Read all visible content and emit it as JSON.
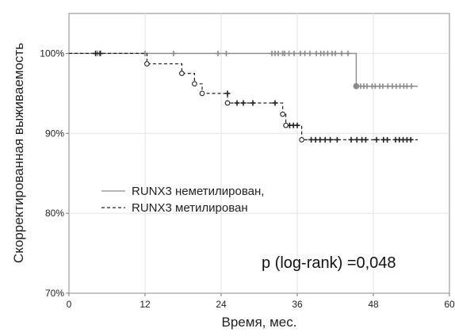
{
  "chart_data": {
    "type": "line",
    "subtype": "kaplan-meier",
    "xlabel": "Время, мес.",
    "ylabel": "Скорректированная выживаемость",
    "xlim": [
      0,
      60
    ],
    "ylim": [
      70,
      105
    ],
    "x_ticks": [
      0,
      12,
      24,
      36,
      48,
      60
    ],
    "x_tick_labels": [
      "0",
      "12",
      "24",
      "36",
      "48",
      "60"
    ],
    "y_ticks": [
      70,
      80,
      90,
      100
    ],
    "y_tick_labels": [
      "70%",
      "80%",
      "90%",
      "100%"
    ],
    "grid": true,
    "legend_position": "lower-left",
    "annotation": "p (log-rank) =0,048",
    "series": [
      {
        "name": "RUNX3 неметилирован,",
        "color": "#8a8a8a",
        "line_style": "solid",
        "steps": [
          [
            0,
            100
          ],
          [
            45.3,
            100
          ],
          [
            45.3,
            95.9
          ],
          [
            55,
            95.9
          ]
        ],
        "events": [
          [
            45.3,
            95.9
          ]
        ],
        "censored": [
          [
            4.5,
            100
          ],
          [
            5,
            100
          ],
          [
            12,
            100
          ],
          [
            16.5,
            100
          ],
          [
            23.5,
            100
          ],
          [
            24.8,
            100
          ],
          [
            32,
            100
          ],
          [
            32.5,
            100
          ],
          [
            33,
            100
          ],
          [
            33.7,
            100
          ],
          [
            34,
            100
          ],
          [
            34.7,
            100
          ],
          [
            35.5,
            100
          ],
          [
            36.5,
            100
          ],
          [
            37.2,
            100
          ],
          [
            38,
            100
          ],
          [
            39,
            100
          ],
          [
            39.7,
            100
          ],
          [
            40.2,
            100
          ],
          [
            40.8,
            100
          ],
          [
            41.5,
            100
          ],
          [
            42,
            100
          ],
          [
            43,
            100
          ],
          [
            44,
            100
          ],
          [
            46,
            95.9
          ],
          [
            46.5,
            95.9
          ],
          [
            47,
            95.9
          ],
          [
            47.8,
            95.9
          ],
          [
            48.3,
            95.9
          ],
          [
            49,
            95.9
          ],
          [
            49.5,
            95.9
          ],
          [
            50.3,
            95.9
          ],
          [
            51,
            95.9
          ],
          [
            51.6,
            95.9
          ],
          [
            52.2,
            95.9
          ],
          [
            52.8,
            95.9
          ],
          [
            53.3,
            95.9
          ],
          [
            54,
            95.9
          ]
        ]
      },
      {
        "name": "RUNX3 метилирован",
        "color": "#222222",
        "line_style": "dashed",
        "steps": [
          [
            0,
            100
          ],
          [
            12.3,
            100
          ],
          [
            12.3,
            98.7
          ],
          [
            17.8,
            98.7
          ],
          [
            17.8,
            97.5
          ],
          [
            19.8,
            97.5
          ],
          [
            19.8,
            96.2
          ],
          [
            21,
            96.2
          ],
          [
            21,
            95.0
          ],
          [
            25,
            95.0
          ],
          [
            25,
            93.8
          ],
          [
            33.7,
            93.8
          ],
          [
            33.7,
            92.4
          ],
          [
            34.2,
            92.4
          ],
          [
            34.2,
            91.0
          ],
          [
            36.7,
            91.0
          ],
          [
            36.7,
            89.2
          ],
          [
            55,
            89.2
          ]
        ],
        "events": [
          [
            12.3,
            98.7
          ],
          [
            17.8,
            97.5
          ],
          [
            19.8,
            96.2
          ],
          [
            21,
            95.0
          ],
          [
            25,
            93.8
          ],
          [
            33.7,
            92.4
          ],
          [
            34.2,
            91.0
          ],
          [
            36.7,
            89.2
          ]
        ],
        "censored": [
          [
            4.2,
            100
          ],
          [
            4.9,
            100
          ],
          [
            25,
            95.0
          ],
          [
            26.5,
            93.8
          ],
          [
            27.5,
            93.8
          ],
          [
            29,
            93.8
          ],
          [
            32.5,
            93.8
          ],
          [
            34.8,
            91.0
          ],
          [
            35.4,
            91.0
          ],
          [
            36,
            91.0
          ],
          [
            38.2,
            89.2
          ],
          [
            38.9,
            89.2
          ],
          [
            39.6,
            89.2
          ],
          [
            40.4,
            89.2
          ],
          [
            41.2,
            89.2
          ],
          [
            42.3,
            89.2
          ],
          [
            44.5,
            89.2
          ],
          [
            45.4,
            89.2
          ],
          [
            46.2,
            89.2
          ],
          [
            46.8,
            89.2
          ],
          [
            48.5,
            89.2
          ],
          [
            49.6,
            89.2
          ],
          [
            50.2,
            89.2
          ],
          [
            51.5,
            89.2
          ],
          [
            52.1,
            89.2
          ],
          [
            52.7,
            89.2
          ],
          [
            53.3,
            89.2
          ],
          [
            53.9,
            89.2
          ]
        ]
      }
    ]
  }
}
